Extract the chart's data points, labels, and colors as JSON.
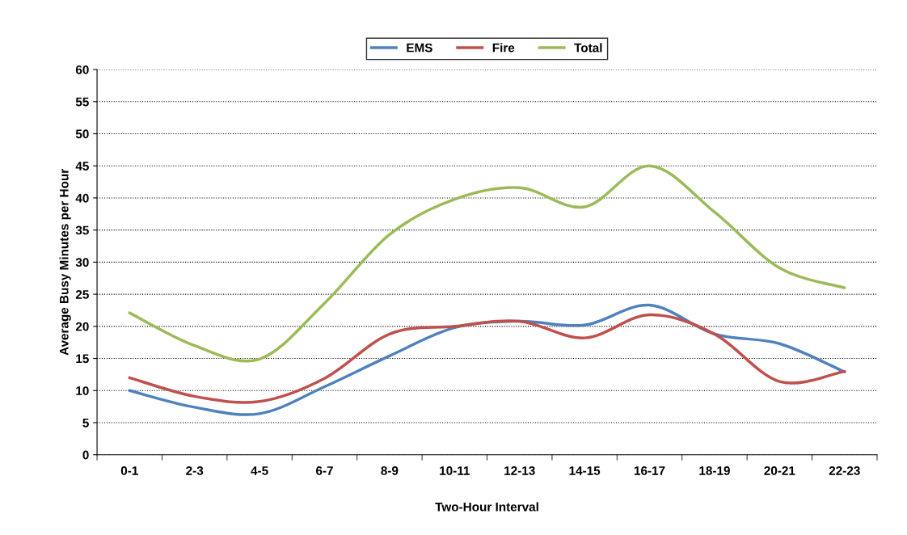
{
  "chart_data": {
    "type": "line",
    "xlabel": "Two-Hour Interval",
    "ylabel": "Average Busy Minutes per Hour",
    "categories": [
      "0-1",
      "2-3",
      "4-5",
      "6-7",
      "8-9",
      "10-11",
      "12-13",
      "14-15",
      "16-17",
      "18-19",
      "20-21",
      "22-23"
    ],
    "series": [
      {
        "name": "EMS",
        "color": "#4f81bd",
        "values": [
          10,
          7.4,
          6.4,
          10.6,
          15.4,
          19.8,
          20.8,
          20.2,
          23.3,
          18.8,
          17.3,
          12.9
        ]
      },
      {
        "name": "Fire",
        "color": "#c0504d",
        "values": [
          12,
          9.1,
          8.3,
          11.9,
          18.8,
          20,
          20.8,
          18.2,
          21.8,
          18.8,
          11.4,
          13
        ]
      },
      {
        "name": "Total",
        "color": "#9bbb59",
        "values": [
          22.1,
          17,
          14.9,
          23.6,
          34.3,
          39.8,
          41.6,
          38.6,
          45,
          37.8,
          29.1,
          26
        ]
      }
    ],
    "ylim": [
      0,
      60
    ],
    "yticks": [
      0,
      5,
      10,
      15,
      20,
      25,
      30,
      35,
      40,
      45,
      50,
      55,
      60
    ],
    "grid": "y",
    "legend": "top",
    "marker": "none",
    "line_style": "solid"
  }
}
